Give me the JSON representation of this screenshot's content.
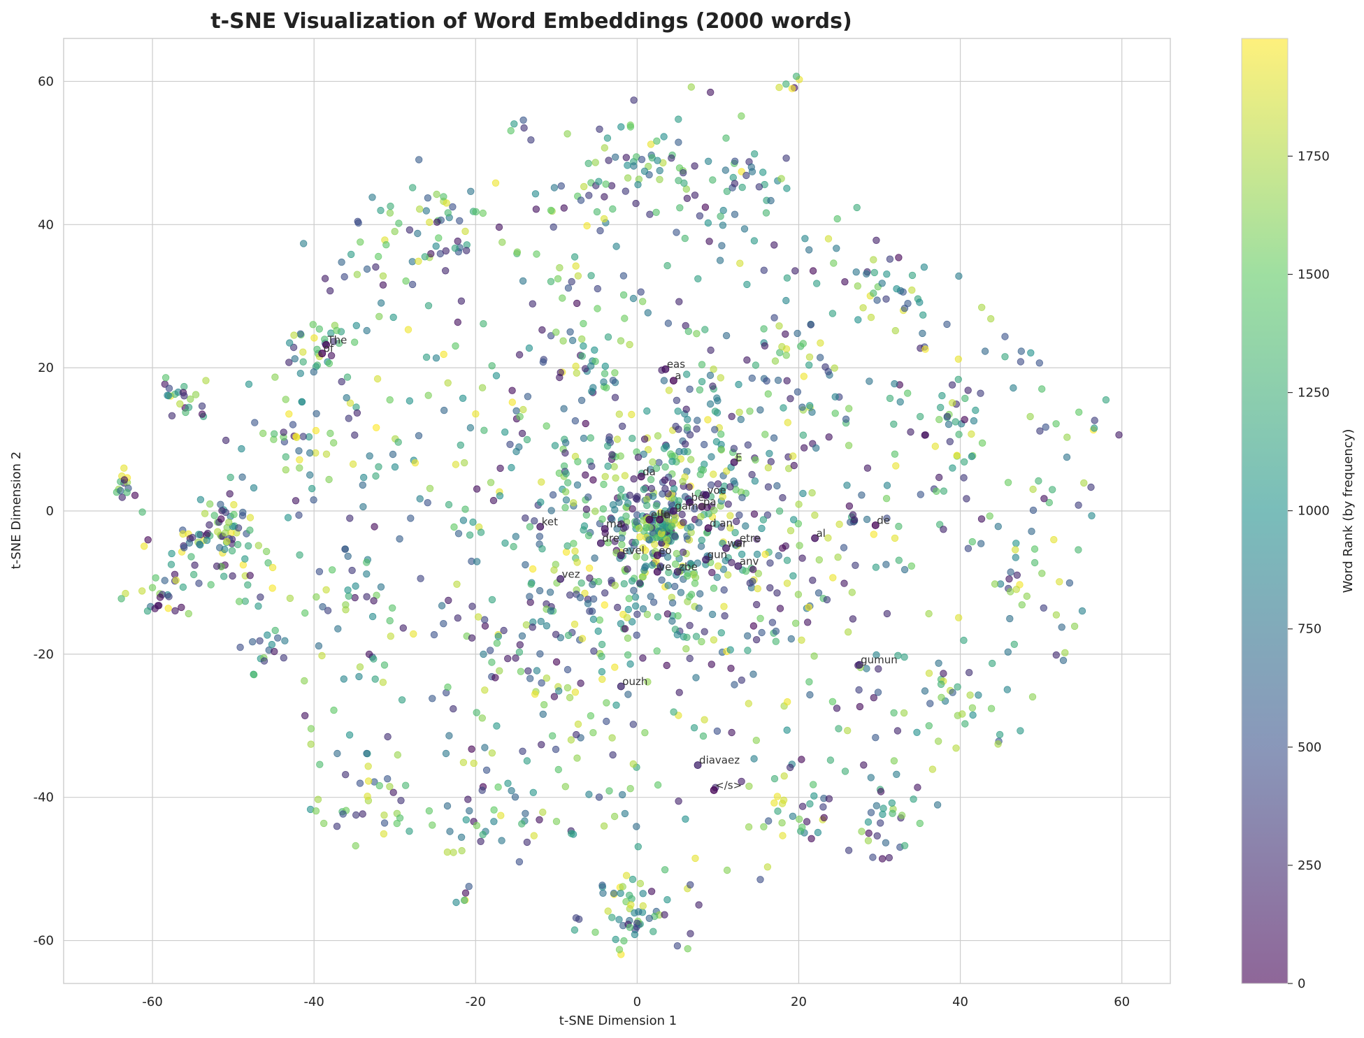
{
  "chart_data": {
    "type": "scatter",
    "title": "t-SNE Visualization of Word Embeddings (2000 words)",
    "xlabel": "t-SNE Dimension 1",
    "ylabel": "t-SNE Dimension 2",
    "xlim": [
      -71,
      66
    ],
    "ylim": [
      -66,
      66
    ],
    "xticks": [
      -60,
      -40,
      -20,
      0,
      20,
      40,
      60
    ],
    "yticks": [
      -60,
      -40,
      -20,
      0,
      20,
      40,
      60
    ],
    "grid": true,
    "colorbar": {
      "label": "Word Rank (by frequency)",
      "range": [
        0,
        1999
      ],
      "ticks": [
        0,
        250,
        500,
        750,
        1000,
        1250,
        1500,
        1750
      ],
      "colormap": "viridis",
      "colors": [
        "#440154",
        "#3b528b",
        "#21918c",
        "#5ec962",
        "#fde725"
      ]
    },
    "n_points": 2000,
    "labeled_points": [
      {
        "text": "The",
        "x": -38.5,
        "y": 23.2,
        "rank": 20
      },
      {
        "text": "of",
        "x": -39.0,
        "y": 22.0,
        "rank": 5
      },
      {
        "text": "eas",
        "x": 3.5,
        "y": 19.8,
        "rank": 80
      },
      {
        "text": "a",
        "x": 4.5,
        "y": 18.2,
        "rank": 10
      },
      {
        "text": "E",
        "x": 12.0,
        "y": 6.8,
        "rank": 90
      },
      {
        "text": "da",
        "x": 0.5,
        "y": 4.8,
        "rank": 60
      },
      {
        "text": "voe",
        "x": 8.5,
        "y": 2.2,
        "rank": 70
      },
      {
        "text": "be",
        "x": 6.5,
        "y": 1.2,
        "rank": 40
      },
      {
        "text": "pa",
        "x": 8.0,
        "y": 0.6,
        "rank": 50
      },
      {
        "text": "gam",
        "x": 4.5,
        "y": 0.0,
        "rank": 110
      },
      {
        "text": "elle",
        "x": 1.5,
        "y": -1.2,
        "rank": 30
      },
      {
        "text": "in",
        "x": 2.8,
        "y": -1.2,
        "rank": 3
      },
      {
        "text": "ket",
        "x": -12.0,
        "y": -2.2,
        "rank": 120
      },
      {
        "text": "ma",
        "x": -4.0,
        "y": -2.5,
        "rank": 100
      },
      {
        "text": "d an",
        "x": 8.8,
        "y": -2.4,
        "rank": 25
      },
      {
        "text": "al",
        "x": 22.0,
        "y": -3.8,
        "rank": 85
      },
      {
        "text": "de",
        "x": 29.5,
        "y": -2.0,
        "rank": 15
      },
      {
        "text": "dre",
        "x": -4.5,
        "y": -4.5,
        "rank": 130
      },
      {
        "text": "etre",
        "x": 12.5,
        "y": -4.5,
        "rank": 150
      },
      {
        "text": "war",
        "x": 11.0,
        "y": -5.2,
        "rank": 140
      },
      {
        "text": "evel",
        "x": -2.0,
        "y": -6.2,
        "rank": 160
      },
      {
        "text": "eo",
        "x": 2.5,
        "y": -6.2,
        "rank": 35
      },
      {
        "text": "gun",
        "x": 8.5,
        "y": -6.8,
        "rank": 170
      },
      {
        "text": "anv",
        "x": 12.5,
        "y": -7.7,
        "rank": 180
      },
      {
        "text": "vez",
        "x": -9.5,
        "y": -9.5,
        "rank": 190
      },
      {
        "text": "ve",
        "x": 2.5,
        "y": -8.5,
        "rank": 45
      },
      {
        "text": "zbe",
        "x": 5.0,
        "y": -8.5,
        "rank": 200
      },
      {
        "text": "gumun",
        "x": 27.5,
        "y": -21.5,
        "rank": 220
      },
      {
        "text": "ouzh",
        "x": -2.0,
        "y": -24.5,
        "rank": 240
      },
      {
        "text": "diavaez",
        "x": 7.5,
        "y": -35.5,
        "rank": 210
      },
      {
        "text": "</s>",
        "x": 9.5,
        "y": -39.0,
        "rank": 0
      }
    ]
  }
}
